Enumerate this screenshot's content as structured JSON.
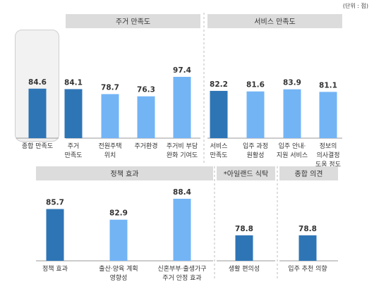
{
  "unit_label": "(단위 : 점)",
  "colors": {
    "dark_bar": "#2e75b6",
    "light_bar": "#73b4f5",
    "header_bg": "#dcdcdc",
    "highlight_bg": "#f2f2f2"
  },
  "chart_data": [
    {
      "type": "bar",
      "group": "",
      "categories": [
        "종합 만족도"
      ],
      "values": [
        84.6
      ],
      "highlighted": true
    },
    {
      "type": "bar",
      "group": "주거 만족도",
      "categories": [
        "주거 만족도",
        "전원주택 위치",
        "주거환경",
        "주거비 부담 완화 기여도"
      ],
      "values": [
        84.1,
        78.7,
        76.3,
        97.4
      ]
    },
    {
      "type": "bar",
      "group": "서비스 만족도",
      "categories": [
        "서비스 만족도",
        "입주 과정 원활성",
        "입주 안내·지원 서비스",
        "정보의 의사결정 도움 정도"
      ],
      "values": [
        82.2,
        81.6,
        83.9,
        81.1
      ]
    },
    {
      "type": "bar",
      "group": "정책 효과",
      "categories": [
        "정책 효과",
        "출산·양육 계획 영향성",
        "신혼부부·출생가구 주거 안정 효과"
      ],
      "values": [
        85.7,
        82.9,
        88.4
      ]
    },
    {
      "type": "bar",
      "group": "*아일랜드 식탁",
      "categories": [
        "생활 편의성"
      ],
      "values": [
        78.8
      ]
    },
    {
      "type": "bar",
      "group": "종합 의견",
      "categories": [
        "입주 추천 의향"
      ],
      "values": [
        78.8
      ]
    }
  ]
}
